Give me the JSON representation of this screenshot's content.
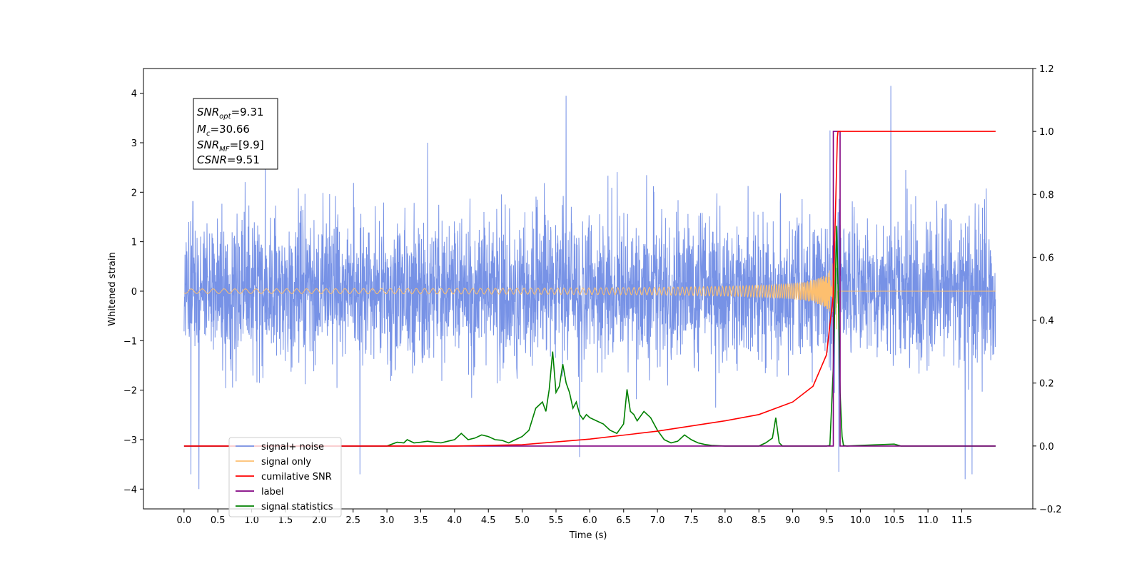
{
  "chart_data": {
    "type": "line",
    "xlabel": "Time (s)",
    "ylabel": "Whitened strain",
    "xlim": [
      -0.6,
      12.55
    ],
    "ylim": [
      -4.4,
      4.5
    ],
    "ylim_right": [
      -0.2,
      1.2
    ],
    "x_ticks": [
      "0.0",
      "0.5",
      "1.0",
      "1.5",
      "2.0",
      "2.5",
      "3.0",
      "3.5",
      "4.0",
      "4.5",
      "5.0",
      "5.5",
      "6.0",
      "6.5",
      "7.0",
      "7.5",
      "8.0",
      "8.5",
      "9.0",
      "9.5",
      "10.0",
      "10.5",
      "11.0",
      "11.5"
    ],
    "y_ticks_left": [
      4,
      3,
      2,
      1,
      0,
      -1,
      -2,
      -3,
      -4
    ],
    "y_tick_labels_left": [
      "4",
      "3",
      "2",
      "1",
      "0",
      "−1",
      "−2",
      "−3",
      "−4"
    ],
    "y_ticks_right": [
      1.2,
      1.0,
      0.8,
      0.6,
      0.4,
      0.2,
      0.0,
      -0.2
    ],
    "y_tick_labels_right": [
      "1.2",
      "1.0",
      "0.8",
      "0.6",
      "0.4",
      "0.2",
      "0.0",
      "−0.2"
    ],
    "grid": false,
    "legend_position": "lower-left",
    "stats_box": {
      "snr_opt": "=9.31",
      "mc": "=30.66",
      "snr_mf": "=[9.9]",
      "csnr": "=9.51"
    },
    "series": [
      {
        "name": "signal+ noise",
        "axis": "left",
        "color": "#7792e6",
        "noise_envelope": {
          "x_start": 0.0,
          "x_end": 12.0,
          "typical_max": 2.2,
          "typical_min": -2.2
        },
        "spikes": [
          {
            "x": 0.1,
            "y": -3.7
          },
          {
            "x": 0.22,
            "y": -4.0
          },
          {
            "x": 2.6,
            "y": -3.7
          },
          {
            "x": 5.65,
            "y": 3.95
          },
          {
            "x": 5.85,
            "y": -3.35
          },
          {
            "x": 9.55,
            "y": 3.25
          },
          {
            "x": 9.68,
            "y": -3.65
          },
          {
            "x": 10.45,
            "y": 4.15
          },
          {
            "x": 11.55,
            "y": -3.8
          },
          {
            "x": 11.65,
            "y": -3.7
          },
          {
            "x": 3.6,
            "y": 3.0
          },
          {
            "x": 1.2,
            "y": 2.9
          }
        ]
      },
      {
        "name": "signal only",
        "axis": "left",
        "color": "#fdbf6f",
        "chirp": {
          "x_start": 0.0,
          "x_merger": 9.66,
          "x_end": 12.0,
          "amp_start": 0.02,
          "amp_peak": 1.45,
          "shaded_color": "#c8a27a"
        }
      },
      {
        "name": "cumilative SNR",
        "axis": "right",
        "color": "#ff0000",
        "x": [
          0.0,
          4.0,
          5.0,
          6.0,
          7.0,
          8.0,
          8.5,
          9.0,
          9.3,
          9.5,
          9.6,
          9.66,
          9.67,
          12.0
        ],
        "y": [
          0.0,
          0.0,
          0.004,
          0.022,
          0.047,
          0.08,
          0.1,
          0.14,
          0.19,
          0.29,
          0.48,
          0.98,
          1.0,
          1.0
        ]
      },
      {
        "name": "label",
        "axis": "right",
        "color": "#800080",
        "x": [
          0.0,
          9.6,
          9.6,
          9.7,
          9.7,
          12.0
        ],
        "y": [
          0.0,
          0.0,
          1.0,
          1.0,
          0.0,
          0.0
        ]
      },
      {
        "name": "signal statistics",
        "axis": "right",
        "color": "#008000",
        "x": [
          0.0,
          3.0,
          3.15,
          3.25,
          3.3,
          3.4,
          3.5,
          3.6,
          3.7,
          3.8,
          3.9,
          4.0,
          4.1,
          4.2,
          4.3,
          4.4,
          4.5,
          4.6,
          4.7,
          4.8,
          4.9,
          5.0,
          5.1,
          5.2,
          5.3,
          5.35,
          5.4,
          5.45,
          5.5,
          5.55,
          5.6,
          5.65,
          5.7,
          5.75,
          5.8,
          5.85,
          5.9,
          5.95,
          6.0,
          6.1,
          6.2,
          6.3,
          6.4,
          6.5,
          6.55,
          6.6,
          6.65,
          6.7,
          6.8,
          6.9,
          7.0,
          7.1,
          7.2,
          7.3,
          7.4,
          7.5,
          7.6,
          7.7,
          7.8,
          8.0,
          8.5,
          8.6,
          8.7,
          8.75,
          8.8,
          8.85,
          9.0,
          9.5,
          9.55,
          9.6,
          9.65,
          9.68,
          9.7,
          9.73,
          9.75,
          9.8,
          10.0,
          10.5,
          10.6,
          12.0
        ],
        "y": [
          0.0,
          0.0,
          0.012,
          0.01,
          0.02,
          0.01,
          0.012,
          0.015,
          0.012,
          0.01,
          0.015,
          0.02,
          0.04,
          0.02,
          0.025,
          0.035,
          0.03,
          0.02,
          0.018,
          0.01,
          0.02,
          0.03,
          0.05,
          0.12,
          0.14,
          0.11,
          0.18,
          0.3,
          0.17,
          0.19,
          0.26,
          0.2,
          0.17,
          0.12,
          0.14,
          0.1,
          0.085,
          0.1,
          0.09,
          0.08,
          0.07,
          0.05,
          0.04,
          0.07,
          0.18,
          0.11,
          0.1,
          0.08,
          0.11,
          0.09,
          0.05,
          0.02,
          0.01,
          0.015,
          0.035,
          0.02,
          0.01,
          0.005,
          0.002,
          0.0,
          0.0,
          0.01,
          0.025,
          0.09,
          0.01,
          0.0,
          0.0,
          0.0,
          0.002,
          0.25,
          0.7,
          0.42,
          0.17,
          0.03,
          0.002,
          0.0,
          0.002,
          0.006,
          0.0,
          0.0
        ]
      }
    ]
  }
}
